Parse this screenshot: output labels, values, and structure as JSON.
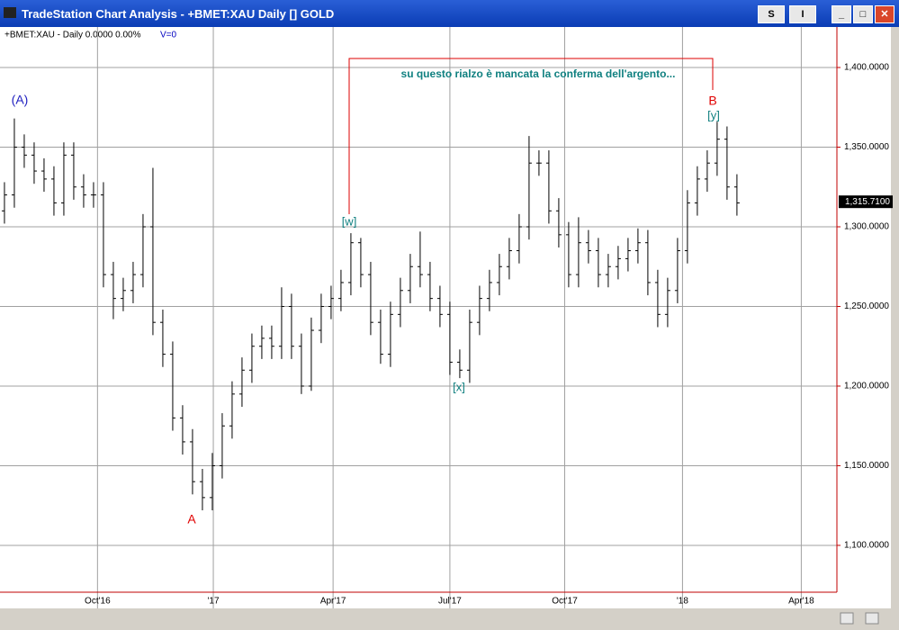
{
  "window": {
    "title": "TradeStation Chart Analysis - +BMET:XAU Daily [] GOLD",
    "buttons": [
      "S",
      "I"
    ]
  },
  "chart_data": {
    "type": "ohlc",
    "subtitle": "+BMET:XAU - Daily  0.0000  0.00%",
    "volume_label": "V=0",
    "x": [
      0,
      1,
      2,
      3,
      4,
      5,
      6,
      7,
      8,
      9,
      10,
      11,
      12,
      13,
      14,
      15,
      16,
      17,
      18,
      19,
      20,
      21,
      22,
      23,
      24,
      25,
      26,
      27,
      28,
      29,
      30,
      31,
      32,
      33,
      34,
      35,
      36,
      37,
      38,
      39,
      40,
      41,
      42,
      43,
      44,
      45,
      46,
      47,
      48,
      49,
      50,
      51,
      52,
      53,
      54,
      55,
      56,
      57,
      58,
      59,
      60,
      61,
      62,
      63,
      64,
      65,
      66,
      67,
      68,
      69,
      70,
      71,
      72,
      73,
      74
    ],
    "open": [
      1310,
      1320,
      1350,
      1345,
      1335,
      1330,
      1315,
      1345,
      1325,
      1320,
      1320,
      1270,
      1255,
      1260,
      1270,
      1300,
      1240,
      1220,
      1180,
      1165,
      1140,
      1130,
      1150,
      1175,
      1195,
      1210,
      1225,
      1230,
      1225,
      1250,
      1225,
      1200,
      1235,
      1250,
      1255,
      1265,
      1290,
      1270,
      1240,
      1220,
      1245,
      1260,
      1275,
      1270,
      1255,
      1245,
      1215,
      1210,
      1240,
      1255,
      1265,
      1275,
      1285,
      1300,
      1340,
      1340,
      1310,
      1295,
      1270,
      1290,
      1285,
      1270,
      1275,
      1280,
      1285,
      1290,
      1265,
      1245,
      1260,
      1285,
      1315,
      1330,
      1340,
      1355,
      1325
    ],
    "high": [
      1328,
      1368,
      1358,
      1353,
      1343,
      1338,
      1353,
      1353,
      1333,
      1328,
      1328,
      1278,
      1268,
      1278,
      1308,
      1337,
      1248,
      1228,
      1188,
      1173,
      1148,
      1158,
      1183,
      1203,
      1218,
      1233,
      1238,
      1238,
      1262,
      1258,
      1233,
      1243,
      1258,
      1263,
      1273,
      1296,
      1293,
      1278,
      1248,
      1253,
      1268,
      1283,
      1297,
      1278,
      1263,
      1253,
      1223,
      1248,
      1263,
      1273,
      1283,
      1293,
      1308,
      1357,
      1348,
      1348,
      1318,
      1303,
      1306,
      1298,
      1293,
      1283,
      1288,
      1293,
      1299,
      1298,
      1273,
      1268,
      1293,
      1323,
      1338,
      1348,
      1366,
      1363,
      1333
    ],
    "low": [
      1302,
      1312,
      1337,
      1327,
      1322,
      1307,
      1307,
      1317,
      1312,
      1312,
      1262,
      1242,
      1247,
      1252,
      1262,
      1232,
      1212,
      1172,
      1157,
      1132,
      1122,
      1122,
      1142,
      1167,
      1187,
      1202,
      1217,
      1217,
      1217,
      1217,
      1195,
      1197,
      1227,
      1242,
      1247,
      1257,
      1262,
      1232,
      1214,
      1212,
      1237,
      1252,
      1262,
      1247,
      1237,
      1207,
      1205,
      1202,
      1232,
      1247,
      1257,
      1267,
      1277,
      1292,
      1332,
      1302,
      1287,
      1262,
      1262,
      1277,
      1262,
      1262,
      1267,
      1272,
      1277,
      1257,
      1237,
      1237,
      1252,
      1277,
      1307,
      1322,
      1332,
      1317,
      1307
    ],
    "close": [
      1320,
      1350,
      1345,
      1335,
      1330,
      1315,
      1345,
      1325,
      1320,
      1320,
      1270,
      1255,
      1260,
      1270,
      1300,
      1240,
      1220,
      1180,
      1165,
      1140,
      1130,
      1150,
      1175,
      1195,
      1210,
      1225,
      1230,
      1225,
      1250,
      1225,
      1200,
      1235,
      1250,
      1255,
      1265,
      1290,
      1270,
      1240,
      1220,
      1245,
      1260,
      1275,
      1270,
      1255,
      1245,
      1215,
      1210,
      1240,
      1255,
      1265,
      1275,
      1285,
      1300,
      1340,
      1340,
      1310,
      1295,
      1270,
      1290,
      1285,
      1270,
      1275,
      1280,
      1285,
      1290,
      1265,
      1245,
      1260,
      1285,
      1315,
      1330,
      1340,
      1355,
      1325,
      1315
    ],
    "color": "#000000",
    "xlim": [
      -0.45,
      84.1
    ],
    "xticks": [
      {
        "value": 9.4,
        "label": "Oct'16"
      },
      {
        "value": 21.1,
        "label": "'17"
      },
      {
        "value": 33.2,
        "label": "Apr'17"
      },
      {
        "value": 45,
        "label": "Jul'17"
      },
      {
        "value": 56.6,
        "label": "Oct'17"
      },
      {
        "value": 68.5,
        "label": "'18"
      },
      {
        "value": 80.5,
        "label": "Apr'18"
      }
    ],
    "ylim": [
      1070.6,
      1424.3
    ],
    "yticks": [
      {
        "value": 1100,
        "label": "1,100.0000"
      },
      {
        "value": 1150,
        "label": "1,150.0000"
      },
      {
        "value": 1200,
        "label": "1,200.0000"
      },
      {
        "value": 1250,
        "label": "1,250.0000"
      },
      {
        "value": 1300,
        "label": "1,300.0000"
      },
      {
        "value": 1350,
        "label": "1,350.0000"
      },
      {
        "value": 1400,
        "label": "1,400.0000"
      }
    ],
    "grid": true,
    "last_price": {
      "value": 1315.71,
      "label": "1,315.7100"
    },
    "annotations": {
      "wave_A_big": "(A)",
      "wave_A": "A",
      "wave_w": "[w]",
      "wave_x": "[x]",
      "wave_B": "B",
      "wave_y": "[y]",
      "note": "su questo rialzo è mancata la conferma dell'argento..."
    }
  }
}
